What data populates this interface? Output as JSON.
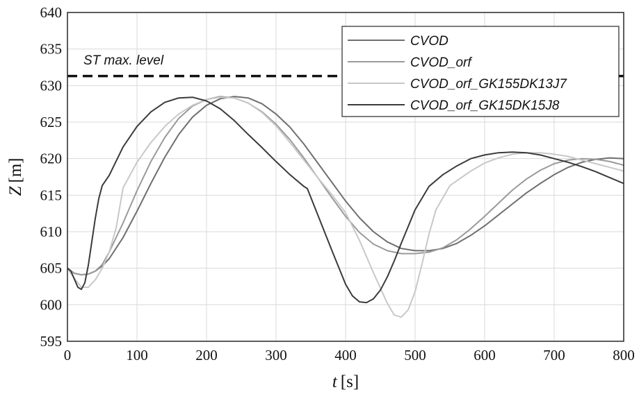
{
  "chart_data": {
    "type": "line",
    "xlabel_var": "t",
    "xlabel_unit": "[s]",
    "ylabel_var": "Z",
    "ylabel_unit": "[m]",
    "xlim": [
      0,
      800
    ],
    "ylim": [
      595,
      640
    ],
    "xticks": [
      0,
      100,
      200,
      300,
      400,
      500,
      600,
      700,
      800
    ],
    "yticks": [
      595,
      600,
      605,
      610,
      615,
      620,
      625,
      630,
      635,
      640
    ],
    "grid": true,
    "legend_position": "top-right",
    "reference_line": {
      "label": "ST max. level",
      "y": 631.3,
      "style": "dashed"
    },
    "series": [
      {
        "name": "CVOD",
        "color": "#6f6f6f",
        "x": [
          0,
          10,
          20,
          30,
          40,
          50,
          60,
          80,
          100,
          120,
          140,
          160,
          180,
          200,
          220,
          240,
          260,
          280,
          300,
          320,
          340,
          360,
          380,
          400,
          420,
          440,
          460,
          480,
          500,
          520,
          540,
          560,
          580,
          600,
          620,
          640,
          660,
          680,
          700,
          720,
          740,
          760,
          780,
          800
        ],
        "y": [
          605.0,
          604.3,
          604.1,
          604.2,
          604.6,
          605.3,
          606.3,
          609.2,
          612.8,
          616.6,
          620.2,
          623.3,
          625.7,
          627.3,
          628.2,
          628.5,
          628.3,
          627.5,
          626.1,
          624.3,
          622.0,
          619.4,
          616.8,
          614.2,
          611.9,
          610.0,
          608.6,
          607.7,
          607.4,
          607.4,
          607.7,
          608.4,
          609.5,
          610.8,
          612.3,
          613.8,
          615.3,
          616.6,
          617.8,
          618.8,
          619.5,
          619.9,
          620.1,
          620.0
        ]
      },
      {
        "name": "CVOD_orf",
        "color": "#9a9a9a",
        "x": [
          0,
          10,
          20,
          30,
          40,
          50,
          60,
          80,
          100,
          120,
          140,
          160,
          180,
          200,
          220,
          240,
          260,
          280,
          300,
          320,
          340,
          360,
          380,
          400,
          420,
          440,
          460,
          480,
          500,
          520,
          540,
          560,
          580,
          600,
          620,
          640,
          660,
          680,
          700,
          720,
          740,
          760,
          780,
          800
        ],
        "y": [
          605.0,
          604.3,
          604.1,
          604.2,
          604.6,
          605.5,
          607.2,
          611.2,
          615.6,
          619.6,
          622.9,
          625.5,
          627.2,
          628.1,
          628.5,
          628.3,
          627.6,
          626.4,
          624.7,
          622.6,
          620.1,
          617.4,
          614.7,
          612.1,
          609.9,
          608.3,
          607.4,
          607.0,
          607.0,
          607.2,
          607.8,
          608.9,
          610.4,
          612.1,
          613.9,
          615.7,
          617.2,
          618.4,
          619.3,
          619.8,
          620.0,
          619.9,
          619.6,
          619.1
        ]
      },
      {
        "name": "CVOD_orf_GK155DK13J7",
        "color": "#c8c8c8",
        "x": [
          0,
          10,
          20,
          30,
          40,
          50,
          60,
          70,
          80,
          100,
          120,
          140,
          160,
          180,
          200,
          220,
          240,
          260,
          280,
          300,
          320,
          340,
          360,
          380,
          400,
          420,
          440,
          460,
          470,
          480,
          490,
          500,
          510,
          520,
          530,
          550,
          580,
          600,
          620,
          640,
          660,
          680,
          700,
          720,
          740,
          760,
          780,
          800
        ],
        "y": [
          605.0,
          603.6,
          602.4,
          602.4,
          603.4,
          605.0,
          607.2,
          610.5,
          616.0,
          619.5,
          622.2,
          624.4,
          626.1,
          627.3,
          628.1,
          628.4,
          628.3,
          627.6,
          626.3,
          624.5,
          622.2,
          619.8,
          617.4,
          615.1,
          612.6,
          608.8,
          604.4,
          600.2,
          598.6,
          598.3,
          599.3,
          601.8,
          605.6,
          609.7,
          613.0,
          616.3,
          618.3,
          619.4,
          620.1,
          620.6,
          620.8,
          620.8,
          620.6,
          620.3,
          619.8,
          619.3,
          618.8,
          618.3
        ]
      },
      {
        "name": "CVOD_orf_GK15DK15J8",
        "color": "#3a3a3a",
        "x": [
          0,
          5,
          10,
          15,
          20,
          25,
          30,
          35,
          40,
          45,
          50,
          60,
          80,
          100,
          120,
          140,
          160,
          180,
          200,
          220,
          240,
          260,
          280,
          300,
          320,
          340,
          345,
          360,
          380,
          400,
          410,
          420,
          430,
          440,
          450,
          460,
          470,
          480,
          500,
          520,
          540,
          560,
          580,
          600,
          620,
          640,
          660,
          680,
          700,
          720,
          740,
          760,
          780,
          800
        ],
        "y": [
          605.0,
          604.6,
          603.5,
          602.4,
          602.1,
          603.0,
          605.4,
          608.6,
          611.8,
          614.5,
          616.3,
          617.7,
          621.6,
          624.4,
          626.4,
          627.7,
          628.3,
          628.4,
          627.9,
          626.8,
          625.2,
          623.3,
          621.5,
          619.6,
          617.8,
          616.2,
          615.9,
          612.3,
          607.5,
          602.8,
          601.2,
          600.4,
          600.3,
          600.8,
          602.0,
          603.8,
          606.0,
          608.4,
          613.0,
          616.2,
          617.8,
          619.0,
          620.0,
          620.5,
          620.8,
          620.9,
          620.8,
          620.5,
          620.0,
          619.5,
          618.9,
          618.2,
          617.4,
          616.6
        ]
      }
    ]
  }
}
